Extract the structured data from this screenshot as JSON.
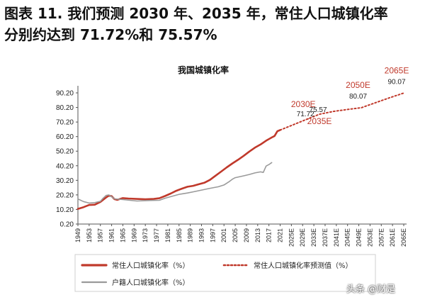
{
  "figure": {
    "title_line1": "图表 11. 我们预测 2030 年、2035 年，常住人口城镇化率",
    "title_line2": "分别约达到 71.72%和 75.57%"
  },
  "watermark": "头条 @财是",
  "chart_data": {
    "type": "line",
    "title": "我国城镇化率",
    "xlabel": "",
    "ylabel": "",
    "ylim": [
      0.2,
      90.2
    ],
    "yticks": [
      "0.20",
      "10.20",
      "20.20",
      "30.20",
      "40.20",
      "50.20",
      "60.20",
      "70.20",
      "80.20",
      "90.20"
    ],
    "xticks": [
      "1949",
      "1953",
      "1957",
      "1961",
      "1965",
      "1969",
      "1973",
      "1977",
      "1981",
      "1985",
      "1989",
      "1993",
      "1997",
      "2001",
      "2005",
      "2009",
      "2013",
      "2017",
      "2021",
      "2025E",
      "2029E",
      "2033E",
      "2037E",
      "2041E",
      "2045E",
      "2049E",
      "2053E",
      "2057E",
      "2061E",
      "2065E"
    ],
    "series": [
      {
        "name": "常住人口城镇化率（%）",
        "color": "#c0392b",
        "style": "solid",
        "points": [
          [
            1949,
            10.6
          ],
          [
            1951,
            11.8
          ],
          [
            1953,
            13.3
          ],
          [
            1955,
            13.5
          ],
          [
            1957,
            15.4
          ],
          [
            1959,
            18.4
          ],
          [
            1960,
            19.7
          ],
          [
            1961,
            19.3
          ],
          [
            1962,
            17.3
          ],
          [
            1963,
            16.8
          ],
          [
            1965,
            18.0
          ],
          [
            1967,
            17.7
          ],
          [
            1970,
            17.4
          ],
          [
            1973,
            17.2
          ],
          [
            1976,
            17.4
          ],
          [
            1978,
            17.9
          ],
          [
            1980,
            19.4
          ],
          [
            1982,
            21.1
          ],
          [
            1984,
            23.0
          ],
          [
            1986,
            24.5
          ],
          [
            1988,
            25.8
          ],
          [
            1990,
            26.4
          ],
          [
            1992,
            27.5
          ],
          [
            1994,
            28.5
          ],
          [
            1996,
            30.5
          ],
          [
            1998,
            33.4
          ],
          [
            2000,
            36.2
          ],
          [
            2002,
            39.1
          ],
          [
            2004,
            41.8
          ],
          [
            2006,
            44.3
          ],
          [
            2008,
            47.0
          ],
          [
            2010,
            49.9
          ],
          [
            2012,
            52.6
          ],
          [
            2014,
            54.8
          ],
          [
            2016,
            57.4
          ],
          [
            2018,
            59.6
          ],
          [
            2019,
            60.6
          ],
          [
            2020,
            63.9
          ],
          [
            2021,
            64.7
          ]
        ]
      },
      {
        "name": "常住人口城镇化率预测值（%）",
        "color": "#c0392b",
        "style": "dotted",
        "points": [
          [
            2021,
            64.7
          ],
          [
            2025,
            67.8
          ],
          [
            2030,
            71.72
          ],
          [
            2035,
            75.57
          ],
          [
            2040,
            77.5
          ],
          [
            2045,
            78.8
          ],
          [
            2050,
            80.07
          ],
          [
            2055,
            83.5
          ],
          [
            2060,
            86.9
          ],
          [
            2065,
            90.07
          ]
        ]
      },
      {
        "name": "户籍人口城镇化率（%）",
        "color": "#9a9a9a",
        "style": "solid",
        "points": [
          [
            1949,
            17.4
          ],
          [
            1951,
            15.6
          ],
          [
            1953,
            14.6
          ],
          [
            1955,
            14.9
          ],
          [
            1957,
            15.8
          ],
          [
            1958,
            18.0
          ],
          [
            1959,
            19.8
          ],
          [
            1960,
            20.2
          ],
          [
            1961,
            19.0
          ],
          [
            1962,
            17.5
          ],
          [
            1965,
            17.0
          ],
          [
            1970,
            16.0
          ],
          [
            1975,
            16.4
          ],
          [
            1978,
            16.5
          ],
          [
            1980,
            17.9
          ],
          [
            1982,
            19.0
          ],
          [
            1985,
            20.6
          ],
          [
            1988,
            21.5
          ],
          [
            1990,
            22.3
          ],
          [
            1993,
            23.5
          ],
          [
            1996,
            24.7
          ],
          [
            1999,
            25.8
          ],
          [
            2001,
            27.0
          ],
          [
            2003,
            29.5
          ],
          [
            2004,
            31.0
          ],
          [
            2005,
            32.0
          ],
          [
            2008,
            33.3
          ],
          [
            2010,
            34.2
          ],
          [
            2012,
            35.3
          ],
          [
            2014,
            36.0
          ],
          [
            2015,
            35.6
          ],
          [
            2016,
            40.0
          ],
          [
            2017,
            41.0
          ],
          [
            2018,
            42.4
          ]
        ]
      }
    ],
    "annotations": [
      {
        "year_label": "2030E",
        "value_label": "71.72",
        "x": 2030,
        "y": 71.72
      },
      {
        "year_label": "2035E",
        "value_label": "75.57",
        "x": 2035,
        "y": 75.57
      },
      {
        "year_label": "2050E",
        "value_label": "80.07",
        "x": 2050,
        "y": 80.07
      },
      {
        "year_label": "2065E",
        "value_label": "90.07",
        "x": 2065,
        "y": 90.07
      }
    ],
    "grid": false,
    "legend_position": "bottom"
  }
}
